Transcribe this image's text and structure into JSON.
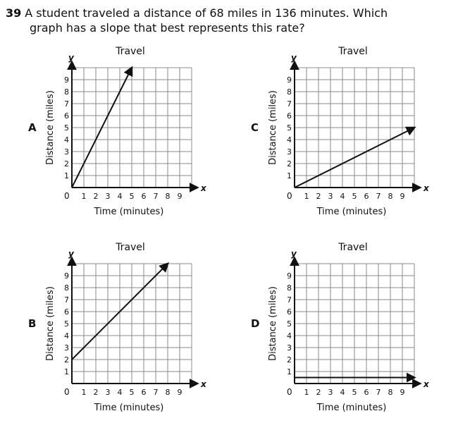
{
  "question": {
    "number": "39",
    "text_line1": "A student traveled a distance of 68 miles in 136 minutes. Which",
    "text_line2": "graph has a slope that best represents this rate?"
  },
  "colors": {
    "line": "#111111",
    "grid": "#888888",
    "background": "#ffffff"
  },
  "chart_data": [
    {
      "type": "line",
      "option": "A",
      "title": "Travel",
      "xlabel": "Time (minutes)",
      "ylabel": "Distance (miles)",
      "x_axis_letter": "x",
      "y_axis_letter": "y",
      "origin_label": "0",
      "xlim": [
        0,
        10
      ],
      "ylim": [
        0,
        10
      ],
      "grid": true,
      "x_ticks": [
        "1",
        "2",
        "3",
        "4",
        "5",
        "6",
        "7",
        "8",
        "9"
      ],
      "y_ticks": [
        "1",
        "2",
        "3",
        "4",
        "5",
        "6",
        "7",
        "8",
        "9"
      ],
      "x": [
        0,
        5
      ],
      "y": [
        0,
        10
      ]
    },
    {
      "type": "line",
      "option": "C",
      "title": "Travel",
      "xlabel": "Time (minutes)",
      "ylabel": "Distance (miles)",
      "x_axis_letter": "x",
      "y_axis_letter": "y",
      "origin_label": "0",
      "xlim": [
        0,
        10
      ],
      "ylim": [
        0,
        10
      ],
      "grid": true,
      "x_ticks": [
        "1",
        "2",
        "3",
        "4",
        "5",
        "6",
        "7",
        "8",
        "9"
      ],
      "y_ticks": [
        "1",
        "2",
        "3",
        "4",
        "5",
        "6",
        "7",
        "8",
        "9"
      ],
      "x": [
        0,
        10
      ],
      "y": [
        0,
        5
      ]
    },
    {
      "type": "line",
      "option": "B",
      "title": "Travel",
      "xlabel": "Time (minutes)",
      "ylabel": "Distance (miles)",
      "x_axis_letter": "x",
      "y_axis_letter": "y",
      "origin_label": "0",
      "xlim": [
        0,
        10
      ],
      "ylim": [
        0,
        10
      ],
      "grid": true,
      "x_ticks": [
        "1",
        "2",
        "3",
        "4",
        "5",
        "6",
        "7",
        "8",
        "9"
      ],
      "y_ticks": [
        "1",
        "2",
        "3",
        "4",
        "5",
        "6",
        "7",
        "8",
        "9"
      ],
      "x": [
        0,
        8
      ],
      "y": [
        2,
        10
      ]
    },
    {
      "type": "line",
      "option": "D",
      "title": "Travel",
      "xlabel": "Time (minutes)",
      "ylabel": "Distance (miles)",
      "x_axis_letter": "x",
      "y_axis_letter": "y",
      "origin_label": "0",
      "xlim": [
        0,
        10
      ],
      "ylim": [
        0,
        10
      ],
      "grid": true,
      "x_ticks": [
        "1",
        "2",
        "3",
        "4",
        "5",
        "6",
        "7",
        "8",
        "9"
      ],
      "y_ticks": [
        "1",
        "2",
        "3",
        "4",
        "5",
        "6",
        "7",
        "8",
        "9"
      ],
      "x": [
        0,
        10
      ],
      "y": [
        0.5,
        0.5
      ]
    }
  ]
}
